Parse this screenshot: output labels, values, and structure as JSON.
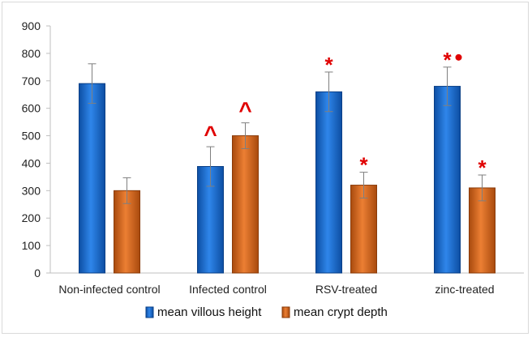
{
  "chart_data": {
    "type": "bar",
    "title": "",
    "xlabel": "",
    "ylabel": "",
    "ylim": [
      0,
      900
    ],
    "yticks": [
      0,
      100,
      200,
      300,
      400,
      500,
      600,
      700,
      800,
      900
    ],
    "grid": false,
    "legend_position": "bottom",
    "categories": [
      "Non-infected control",
      "Infected control",
      "RSV-treated",
      "zinc-treated"
    ],
    "series": [
      {
        "name": "mean villous height",
        "color": "#1f6fd1",
        "values": [
          690,
          388,
          660,
          680
        ],
        "errors": [
          72,
          72,
          72,
          70
        ]
      },
      {
        "name": "mean crypt depth",
        "color": "#d8671c",
        "values": [
          300,
          500,
          320,
          310
        ],
        "errors": [
          47,
          47,
          47,
          47
        ]
      }
    ],
    "annotations": [
      {
        "category": 1,
        "series": 0,
        "marker": "^",
        "color": "#e00000"
      },
      {
        "category": 1,
        "series": 1,
        "marker": "^",
        "color": "#e00000"
      },
      {
        "category": 2,
        "series": 0,
        "marker": "*",
        "color": "#e00000"
      },
      {
        "category": 2,
        "series": 1,
        "marker": "*",
        "color": "#e00000"
      },
      {
        "category": 3,
        "series": 0,
        "marker": "*",
        "extra_dot": true,
        "color": "#e00000"
      },
      {
        "category": 3,
        "series": 1,
        "marker": "*",
        "color": "#e00000"
      }
    ]
  }
}
